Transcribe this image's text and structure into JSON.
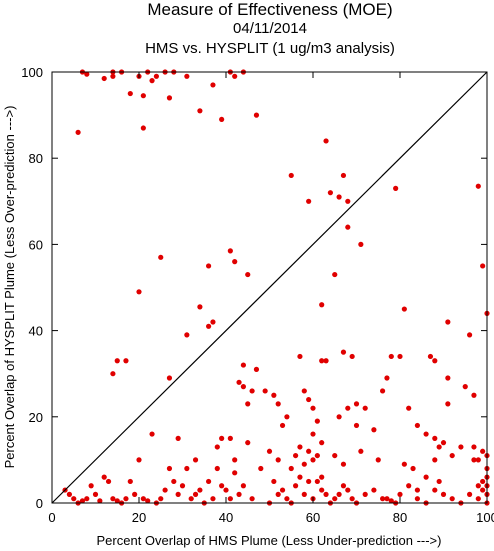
{
  "chart_data": {
    "type": "scatter",
    "title": "Measure of Effectiveness (MOE)",
    "subtitle_date": "04/11/2014",
    "subtitle_analysis": "HMS vs. HYSPLIT  (1 ug/m3 analysis)",
    "xlabel": "Percent Overlap of HMS Plume (Less Under-prediction --->)",
    "ylabel": "Percent Overlap of HYSPLIT Plume (Less Over-prediction --->)",
    "xlim": [
      0,
      100
    ],
    "ylim": [
      0,
      100
    ],
    "xticks": [
      0,
      20,
      40,
      60,
      80,
      100
    ],
    "yticks": [
      0,
      20,
      40,
      60,
      80,
      100
    ],
    "reference_line": "y = x",
    "point_color": "#e00000",
    "points": [
      [
        7,
        100
      ],
      [
        8,
        99.5
      ],
      [
        12,
        98.5
      ],
      [
        14,
        99
      ],
      [
        14,
        100
      ],
      [
        16,
        100
      ],
      [
        18,
        95
      ],
      [
        20,
        99
      ],
      [
        21,
        94.5
      ],
      [
        22,
        100
      ],
      [
        23,
        98
      ],
      [
        24,
        99
      ],
      [
        26,
        100
      ],
      [
        27,
        94
      ],
      [
        28,
        100
      ],
      [
        31,
        99
      ],
      [
        34,
        91
      ],
      [
        37,
        97
      ],
      [
        39,
        89
      ],
      [
        41,
        100
      ],
      [
        42,
        99
      ],
      [
        44,
        100
      ],
      [
        47,
        90
      ],
      [
        6,
        86
      ],
      [
        21,
        87
      ],
      [
        63,
        84
      ],
      [
        55,
        76
      ],
      [
        67,
        76
      ],
      [
        64,
        72
      ],
      [
        68,
        70
      ],
      [
        59,
        70
      ],
      [
        66,
        71
      ],
      [
        79,
        73
      ],
      [
        98,
        73.5
      ],
      [
        68,
        64
      ],
      [
        71,
        60
      ],
      [
        65,
        53
      ],
      [
        99,
        55
      ],
      [
        25,
        57
      ],
      [
        36,
        55
      ],
      [
        41,
        58.5
      ],
      [
        42,
        56
      ],
      [
        45,
        53
      ],
      [
        20,
        49
      ],
      [
        62,
        46
      ],
      [
        81,
        45
      ],
      [
        34,
        45.5
      ],
      [
        37,
        42
      ],
      [
        36,
        41
      ],
      [
        31,
        39
      ],
      [
        96,
        39
      ],
      [
        100,
        44
      ],
      [
        91,
        42
      ],
      [
        15,
        33
      ],
      [
        17,
        33
      ],
      [
        14,
        30
      ],
      [
        27,
        29
      ],
      [
        44,
        32
      ],
      [
        47,
        31
      ],
      [
        49,
        26
      ],
      [
        62,
        33
      ],
      [
        63,
        33
      ],
      [
        67,
        35
      ],
      [
        57,
        34
      ],
      [
        69,
        34
      ],
      [
        78,
        34
      ],
      [
        80,
        34
      ],
      [
        87,
        34
      ],
      [
        88,
        33
      ],
      [
        43,
        28
      ],
      [
        44,
        27
      ],
      [
        45,
        23
      ],
      [
        46,
        26
      ],
      [
        51,
        25
      ],
      [
        52,
        23
      ],
      [
        53,
        18
      ],
      [
        54,
        20
      ],
      [
        58,
        26
      ],
      [
        59,
        24
      ],
      [
        60,
        22
      ],
      [
        60,
        16
      ],
      [
        61,
        19
      ],
      [
        66,
        20
      ],
      [
        68,
        22
      ],
      [
        70,
        18
      ],
      [
        70,
        23
      ],
      [
        72,
        22
      ],
      [
        74,
        17
      ],
      [
        76,
        26
      ],
      [
        77,
        29
      ],
      [
        82,
        22
      ],
      [
        84,
        18
      ],
      [
        86,
        16
      ],
      [
        88,
        15
      ],
      [
        89,
        13
      ],
      [
        90,
        14
      ],
      [
        91,
        29
      ],
      [
        91,
        23
      ],
      [
        94,
        13
      ],
      [
        95,
        27
      ],
      [
        97,
        25
      ],
      [
        97,
        13
      ],
      [
        23,
        16
      ],
      [
        29,
        15
      ],
      [
        33,
        10
      ],
      [
        38,
        13
      ],
      [
        39,
        15
      ],
      [
        41,
        15
      ],
      [
        42,
        10
      ],
      [
        45,
        14
      ],
      [
        50,
        12
      ],
      [
        52,
        10
      ],
      [
        55,
        8
      ],
      [
        56,
        11
      ],
      [
        57,
        13
      ],
      [
        58,
        9
      ],
      [
        59,
        12
      ],
      [
        59,
        5
      ],
      [
        60,
        10
      ],
      [
        61,
        11
      ],
      [
        62,
        6
      ],
      [
        62,
        14
      ],
      [
        65,
        11
      ],
      [
        67,
        9
      ],
      [
        71,
        12
      ],
      [
        75,
        10
      ],
      [
        77,
        1
      ],
      [
        78,
        0.5
      ],
      [
        81,
        9
      ],
      [
        83,
        8
      ],
      [
        84,
        3
      ],
      [
        86,
        6
      ],
      [
        88,
        10
      ],
      [
        89,
        5
      ],
      [
        92,
        11
      ],
      [
        97,
        10
      ],
      [
        98,
        10
      ],
      [
        99,
        12
      ],
      [
        100,
        11
      ],
      [
        3,
        3
      ],
      [
        4,
        2
      ],
      [
        5,
        1
      ],
      [
        6,
        0
      ],
      [
        7,
        0.5
      ],
      [
        8,
        1
      ],
      [
        9,
        4
      ],
      [
        10,
        2
      ],
      [
        11,
        0.5
      ],
      [
        12,
        6
      ],
      [
        13,
        5
      ],
      [
        14,
        1
      ],
      [
        15,
        0.5
      ],
      [
        16,
        0
      ],
      [
        17,
        1
      ],
      [
        18,
        5
      ],
      [
        19,
        2
      ],
      [
        20,
        10
      ],
      [
        21,
        1
      ],
      [
        22,
        0.5
      ],
      [
        24,
        0
      ],
      [
        25,
        1
      ],
      [
        26,
        3
      ],
      [
        27,
        8
      ],
      [
        28,
        5
      ],
      [
        29,
        2
      ],
      [
        30,
        4
      ],
      [
        31,
        8
      ],
      [
        32,
        1
      ],
      [
        33,
        2
      ],
      [
        34,
        3
      ],
      [
        35,
        0
      ],
      [
        36,
        5
      ],
      [
        37,
        1
      ],
      [
        38,
        8
      ],
      [
        39,
        4
      ],
      [
        40,
        3
      ],
      [
        41,
        1
      ],
      [
        42,
        7
      ],
      [
        43,
        2
      ],
      [
        44,
        4
      ],
      [
        46,
        1
      ],
      [
        48,
        8
      ],
      [
        50,
        0
      ],
      [
        51,
        5
      ],
      [
        52,
        2
      ],
      [
        53,
        3
      ],
      [
        54,
        1
      ],
      [
        55,
        0
      ],
      [
        56,
        4
      ],
      [
        57,
        6
      ],
      [
        58,
        2
      ],
      [
        60,
        1
      ],
      [
        61,
        5
      ],
      [
        62,
        3
      ],
      [
        63,
        2
      ],
      [
        64,
        0
      ],
      [
        65,
        1
      ],
      [
        66,
        2
      ],
      [
        67,
        4
      ],
      [
        68,
        3
      ],
      [
        69,
        1
      ],
      [
        70,
        0
      ],
      [
        72,
        2
      ],
      [
        74,
        3
      ],
      [
        76,
        1
      ],
      [
        79,
        0
      ],
      [
        80,
        2
      ],
      [
        82,
        4
      ],
      [
        84,
        1
      ],
      [
        86,
        0
      ],
      [
        88,
        3
      ],
      [
        90,
        2
      ],
      [
        92,
        1
      ],
      [
        94,
        0
      ],
      [
        96,
        2
      ],
      [
        98,
        1
      ],
      [
        99,
        3
      ],
      [
        100,
        0
      ],
      [
        100,
        2
      ],
      [
        100,
        4
      ],
      [
        100,
        6
      ],
      [
        99,
        5
      ],
      [
        98,
        4
      ],
      [
        100,
        8
      ]
    ]
  }
}
